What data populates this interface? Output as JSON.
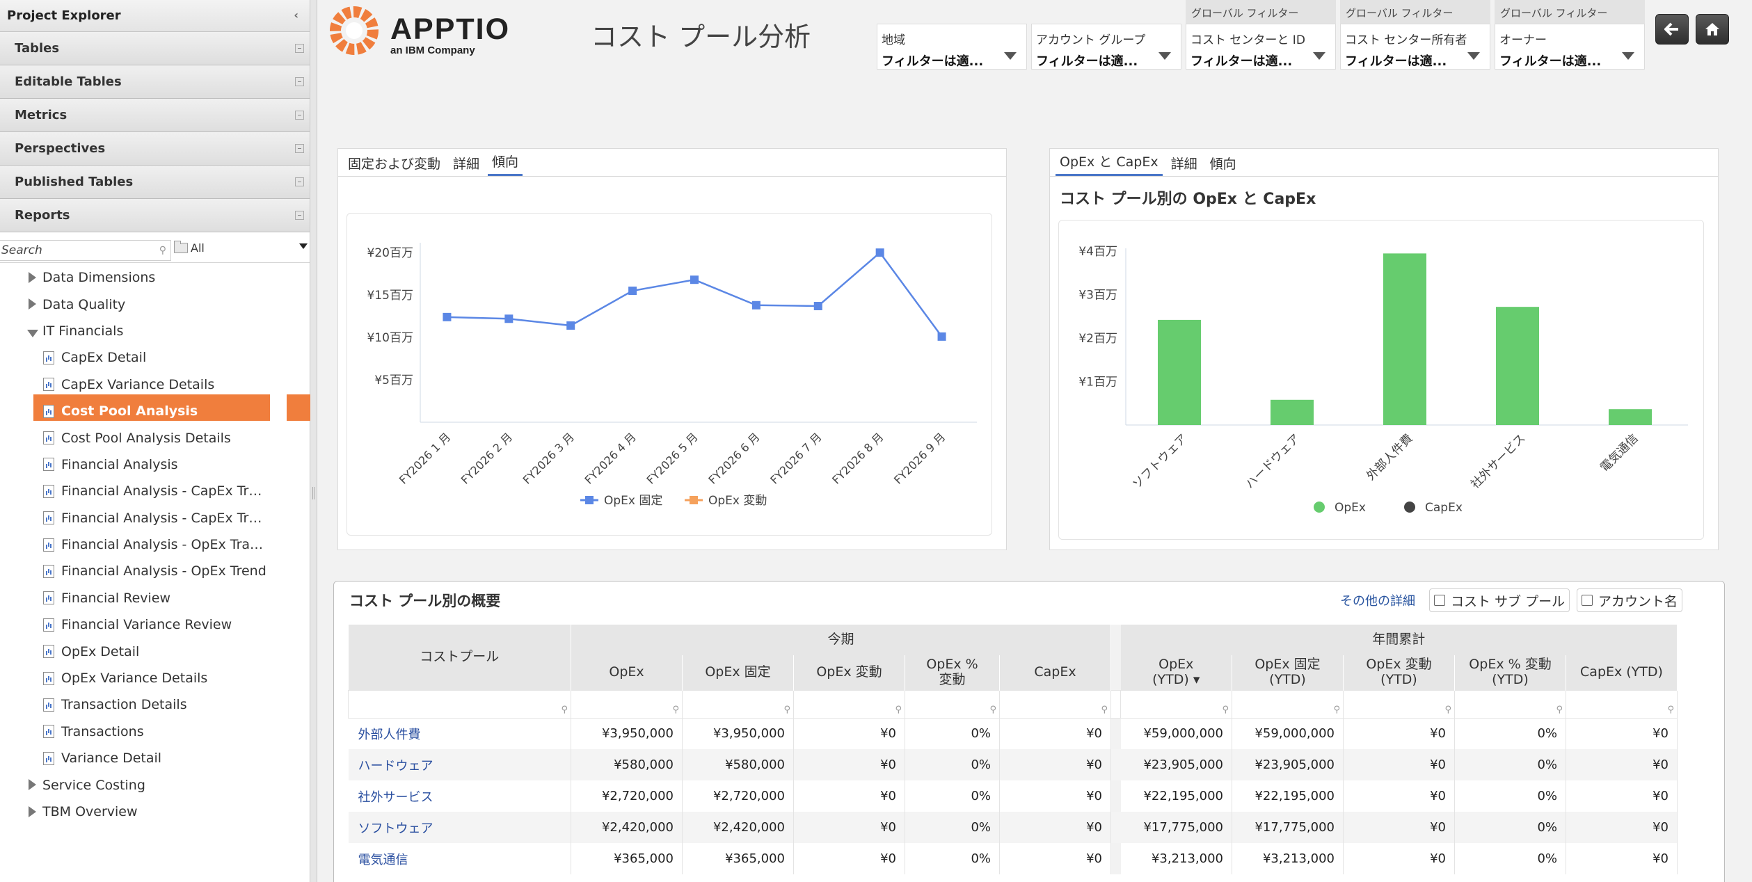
{
  "sidebar": {
    "header": "Project Explorer",
    "accordion": [
      "Tables",
      "Editable Tables",
      "Metrics",
      "Perspectives",
      "Published Tables",
      "Reports"
    ],
    "search_placeholder": "Search",
    "folder_filter": "All",
    "tree": [
      {
        "label": "Data Dimensions",
        "level": 1,
        "state": "collapsed"
      },
      {
        "label": "Data Quality",
        "level": 1,
        "state": "collapsed"
      },
      {
        "label": "IT Financials",
        "level": 1,
        "state": "expanded"
      },
      {
        "label": "CapEx Detail",
        "level": 2
      },
      {
        "label": "CapEx Variance Details",
        "level": 2
      },
      {
        "label": "Cost Pool Analysis",
        "level": 2,
        "selected": true
      },
      {
        "label": "Cost Pool Analysis Details",
        "level": 2
      },
      {
        "label": "Financial Analysis",
        "level": 2
      },
      {
        "label": "Financial Analysis - CapEx Tr…",
        "level": 2
      },
      {
        "label": "Financial Analysis - CapEx Tr…",
        "level": 2
      },
      {
        "label": "Financial Analysis - OpEx Tra…",
        "level": 2
      },
      {
        "label": "Financial Analysis - OpEx Trend",
        "level": 2
      },
      {
        "label": "Financial Review",
        "level": 2
      },
      {
        "label": "Financial Variance Review",
        "level": 2
      },
      {
        "label": "OpEx Detail",
        "level": 2
      },
      {
        "label": "OpEx Variance Details",
        "level": 2
      },
      {
        "label": "Transaction Details",
        "level": 2
      },
      {
        "label": "Transactions",
        "level": 2
      },
      {
        "label": "Variance Detail",
        "level": 2
      },
      {
        "label": "Service Costing",
        "level": 1,
        "state": "collapsed"
      },
      {
        "label": "TBM Overview",
        "level": 1,
        "state": "collapsed"
      }
    ]
  },
  "header": {
    "logo_text": "APPTIO",
    "logo_sub": "an IBM Company",
    "title": "コスト プール分析",
    "filters": [
      {
        "global": "",
        "label": "地域",
        "value": "フィルターは適..."
      },
      {
        "global": "",
        "label": "アカウント グループ",
        "value": "フィルターは適..."
      },
      {
        "global": "グローバル フィルター",
        "label": "コスト センターと ID",
        "value": "フィルターは適..."
      },
      {
        "global": "グローバル フィルター",
        "label": "コスト センター所有者",
        "value": "フィルターは適..."
      },
      {
        "global": "グローバル フィルター",
        "label": "オーナー",
        "value": "フィルターは適..."
      }
    ],
    "colors": {
      "brand_orange": "#f07e3d"
    }
  },
  "left_panel": {
    "tabs": [
      "固定および変動",
      "詳細",
      "傾向"
    ],
    "active_tab": 2
  },
  "right_panel": {
    "tabs": [
      "OpEx と CapEx",
      "詳細",
      "傾向"
    ],
    "active_tab": 0,
    "title": "コスト プール別の OpEx と CapEx"
  },
  "chart_data": [
    {
      "type": "line",
      "title": "",
      "categories": [
        "FY2026 1 月",
        "FY2026 2 月",
        "FY2026 3 月",
        "FY2026 4 月",
        "FY2026 5 月",
        "FY2026 6 月",
        "FY2026 7 月",
        "FY2026 8 月",
        "FY2026 9 月"
      ],
      "series": [
        {
          "name": "OpEx 固定",
          "color": "#5b87e5",
          "values": [
            12.4,
            12.2,
            11.4,
            15.5,
            16.8,
            13.8,
            13.7,
            20.0,
            10.1
          ]
        },
        {
          "name": "OpEx 変動",
          "color": "#f5a15c",
          "values": [
            0,
            0,
            0,
            0,
            0,
            0,
            0,
            0,
            0
          ]
        }
      ],
      "yticks": [
        "¥5百万",
        "¥10百万",
        "¥15百万",
        "¥20百万"
      ],
      "ytick_values": [
        5,
        10,
        15,
        20
      ],
      "ylim": [
        0,
        21
      ],
      "legend": "bottom"
    },
    {
      "type": "bar",
      "title": "コスト プール別の OpEx と CapEx",
      "categories": [
        "ソフトウェア",
        "ハードウェア",
        "外部人件費",
        "社外サービス",
        "電気通信"
      ],
      "series": [
        {
          "name": "OpEx",
          "color": "#66cc6e",
          "values": [
            2.42,
            0.58,
            3.95,
            2.72,
            0.365
          ]
        },
        {
          "name": "CapEx",
          "color": "#444444",
          "values": [
            0,
            0,
            0,
            0,
            0
          ]
        }
      ],
      "yticks": [
        "¥1百万",
        "¥2百万",
        "¥3百万",
        "¥4百万"
      ],
      "ytick_values": [
        1,
        2,
        3,
        4
      ],
      "ylim": [
        0,
        4.1
      ],
      "legend": "bottom"
    }
  ],
  "table": {
    "title": "コスト プール別の概要",
    "more_link": "その他の詳細",
    "checkbox_subpool": "コスト サブ プール",
    "checkbox_account": "アカウント名",
    "group_current": "今期",
    "group_ytd": "年間累計",
    "col_name": "コストプール",
    "cols_current": [
      "OpEx",
      "OpEx 固定",
      "OpEx 変動",
      "OpEx %\n変動",
      "CapEx"
    ],
    "cols_ytd": [
      "OpEx\n(YTD) ▾",
      "OpEx 固定\n(YTD)",
      "OpEx 変動\n(YTD)",
      "OpEx % 変動\n(YTD)",
      "CapEx (YTD)"
    ],
    "rows": [
      {
        "name": "外部人件費",
        "cur": [
          "¥3,950,000",
          "¥3,950,000",
          "¥0",
          "0%",
          "¥0"
        ],
        "ytd": [
          "¥59,000,000",
          "¥59,000,000",
          "¥0",
          "0%",
          "¥0"
        ]
      },
      {
        "name": "ハードウェア",
        "cur": [
          "¥580,000",
          "¥580,000",
          "¥0",
          "0%",
          "¥0"
        ],
        "ytd": [
          "¥23,905,000",
          "¥23,905,000",
          "¥0",
          "0%",
          "¥0"
        ]
      },
      {
        "name": "社外サービス",
        "cur": [
          "¥2,720,000",
          "¥2,720,000",
          "¥0",
          "0%",
          "¥0"
        ],
        "ytd": [
          "¥22,195,000",
          "¥22,195,000",
          "¥0",
          "0%",
          "¥0"
        ]
      },
      {
        "name": "ソフトウェア",
        "cur": [
          "¥2,420,000",
          "¥2,420,000",
          "¥0",
          "0%",
          "¥0"
        ],
        "ytd": [
          "¥17,775,000",
          "¥17,775,000",
          "¥0",
          "0%",
          "¥0"
        ]
      },
      {
        "name": "電気通信",
        "cur": [
          "¥365,000",
          "¥365,000",
          "¥0",
          "0%",
          "¥0"
        ],
        "ytd": [
          "¥3,213,000",
          "¥3,213,000",
          "¥0",
          "0%",
          "¥0"
        ]
      }
    ]
  }
}
